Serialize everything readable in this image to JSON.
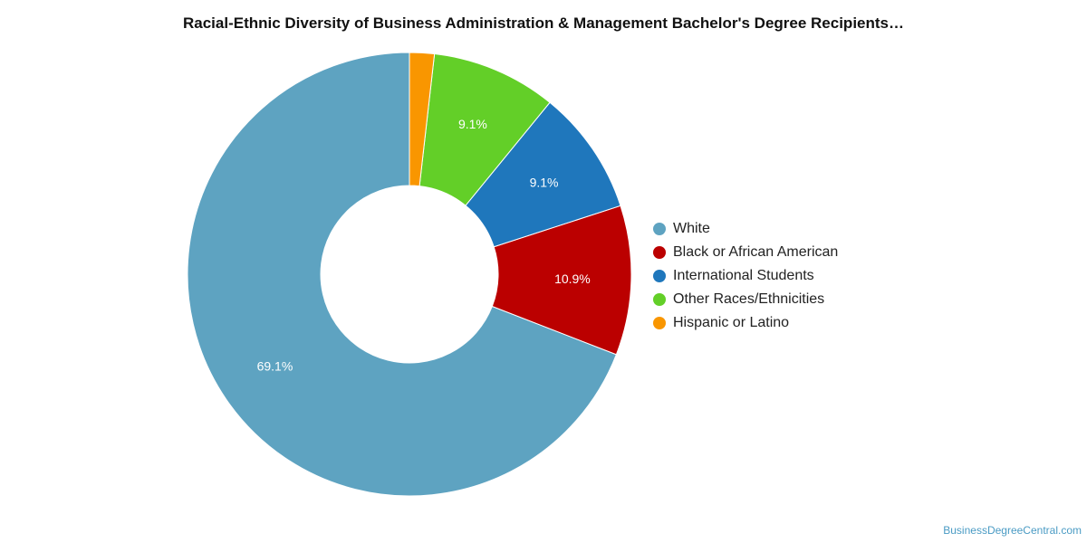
{
  "chart_data": {
    "type": "pie",
    "title": "Racial-Ethnic Diversity of Business Administration & Management Bachelor's Degree Recipients…",
    "donut": true,
    "legend_position": "right",
    "slices": [
      {
        "label": "White",
        "value": 69.1,
        "value_label": "69.1%",
        "color": "#5ea3c1"
      },
      {
        "label": "Black or African American",
        "value": 10.9,
        "value_label": "10.9%",
        "color": "#bb0000"
      },
      {
        "label": "International Students",
        "value": 9.1,
        "value_label": "9.1%",
        "color": "#1f77bc"
      },
      {
        "label": "Other Races/Ethnicities",
        "value": 9.1,
        "value_label": "9.1%",
        "color": "#63cf28"
      },
      {
        "label": "Hispanic or Latino",
        "value": 1.8,
        "value_label": "",
        "color": "#f99600"
      }
    ]
  },
  "credit": "BusinessDegreeCentral.com"
}
